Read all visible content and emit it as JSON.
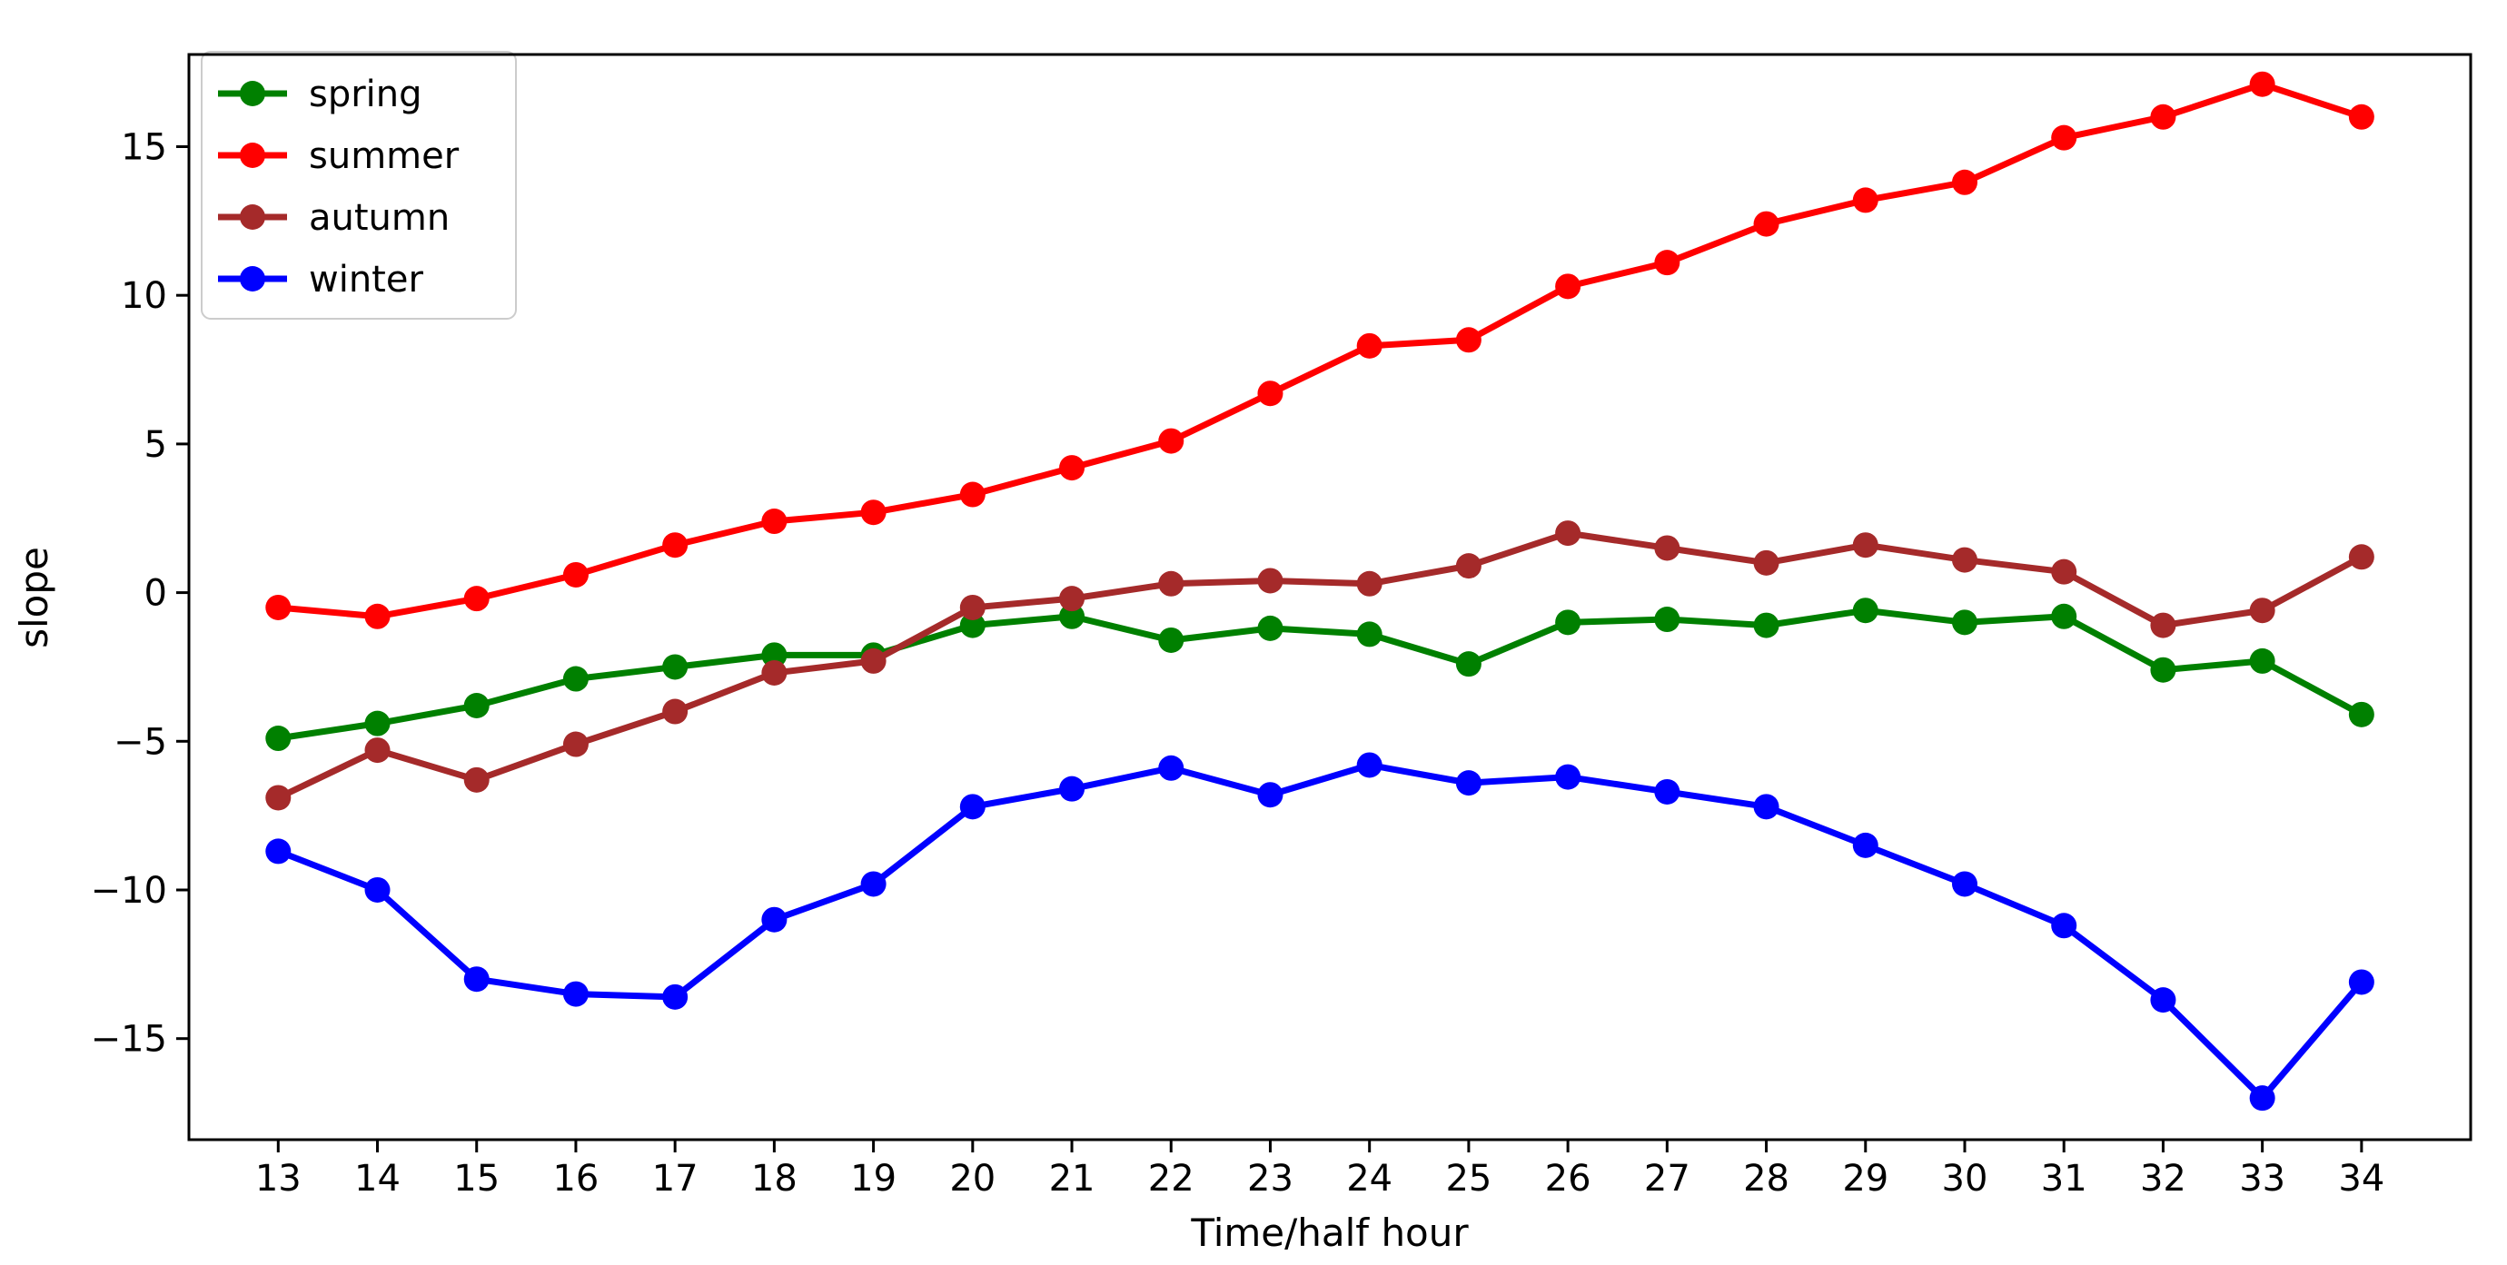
{
  "chart_data": {
    "type": "line",
    "title": "",
    "xlabel": "Time/half hour",
    "ylabel": "slope",
    "x": [
      13,
      14,
      15,
      16,
      17,
      18,
      19,
      20,
      21,
      22,
      23,
      24,
      25,
      26,
      27,
      28,
      29,
      30,
      31,
      32,
      33,
      34
    ],
    "series": [
      {
        "name": "spring",
        "color": "#008000",
        "values": [
          -4.9,
          -4.4,
          -3.8,
          -2.9,
          -2.5,
          -2.1,
          -2.1,
          -1.1,
          -0.8,
          -1.6,
          -1.2,
          -1.4,
          -2.4,
          -1.0,
          -0.9,
          -1.1,
          -0.6,
          -1.0,
          -0.8,
          -2.6,
          -2.3,
          -4.1
        ]
      },
      {
        "name": "summer",
        "color": "#ff0000",
        "values": [
          -0.5,
          -0.8,
          -0.2,
          0.6,
          1.6,
          2.4,
          2.7,
          3.3,
          4.2,
          5.1,
          6.7,
          8.3,
          8.5,
          10.3,
          11.1,
          12.4,
          13.2,
          13.8,
          15.3,
          16.0,
          17.1,
          16.0
        ]
      },
      {
        "name": "autumn",
        "color": "#a52a2a",
        "values": [
          -6.9,
          -5.3,
          -6.3,
          -5.1,
          -4.0,
          -2.7,
          -2.3,
          -0.5,
          -0.2,
          0.3,
          0.4,
          0.3,
          0.9,
          2.0,
          1.5,
          1.0,
          1.6,
          1.1,
          0.7,
          -1.1,
          -0.6,
          1.2
        ]
      },
      {
        "name": "winter",
        "color": "#0000ff",
        "values": [
          -8.7,
          -10.0,
          -13.0,
          -13.5,
          -13.6,
          -11.0,
          -9.8,
          -7.2,
          -6.6,
          -5.9,
          -6.8,
          -5.8,
          -6.4,
          -6.2,
          -6.7,
          -7.2,
          -8.5,
          -9.8,
          -11.2,
          -13.7,
          -17.0,
          -13.1
        ]
      }
    ],
    "xticks": [
      13,
      14,
      15,
      16,
      17,
      18,
      19,
      20,
      21,
      22,
      23,
      24,
      25,
      26,
      27,
      28,
      29,
      30,
      31,
      32,
      33,
      34
    ],
    "yticks": [
      -15,
      -10,
      -5,
      0,
      5,
      10,
      15
    ],
    "xlim": [
      12.1,
      35.1
    ],
    "ylim": [
      -18.4,
      18.1
    ],
    "grid": false,
    "legend": {
      "position": "upper left",
      "entries": [
        "spring",
        "summer",
        "autumn",
        "winter"
      ]
    },
    "marker": "circle",
    "axis_color": "#000000",
    "background_color": "#ffffff"
  }
}
